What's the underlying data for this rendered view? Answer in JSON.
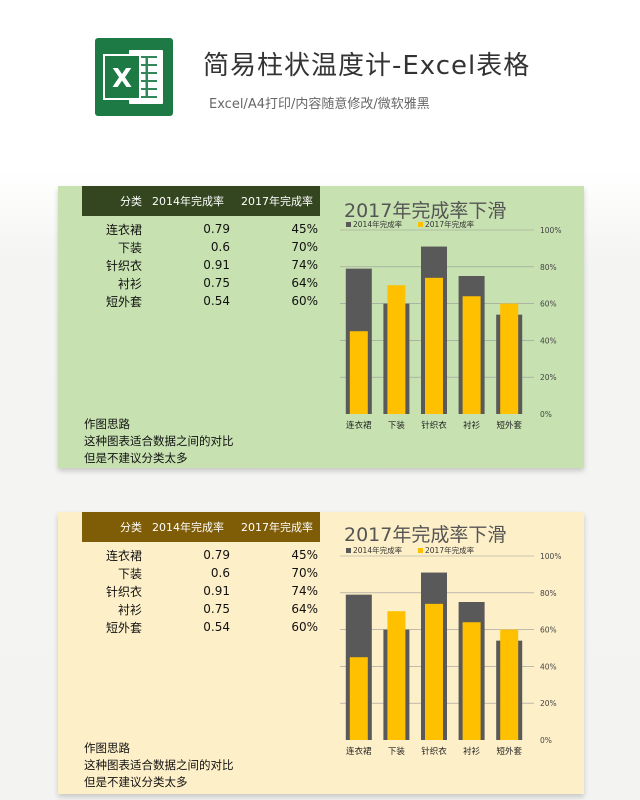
{
  "header": {
    "title": "简易柱状温度计-Excel表格",
    "subtitle": "Excel/A4打印/内容随意修改/微软雅黑",
    "logo_letter": "X"
  },
  "table": {
    "headers": [
      "分类",
      "2014年完成率",
      "2017年完成率"
    ],
    "rows": [
      {
        "category": "连衣裙",
        "v2014": "0.79",
        "v2017": "45%"
      },
      {
        "category": "下装",
        "v2014": "0.6",
        "v2017": "70%"
      },
      {
        "category": "针织衣",
        "v2014": "0.91",
        "v2017": "74%"
      },
      {
        "category": "衬衫",
        "v2014": "0.75",
        "v2017": "64%"
      },
      {
        "category": "短外套",
        "v2014": "0.54",
        "v2017": "60%"
      }
    ]
  },
  "notes": {
    "heading": "作图思路",
    "line1": "这种图表适合数据之间的对比",
    "line2": "但是不建议分类太多"
  },
  "colors": {
    "green_panel": "#c7e1b1",
    "green_header": "#33461f",
    "yellow_panel": "#fdefc8",
    "yellow_header": "#7f5c06",
    "series_2014": "#595959",
    "series_2017": "#ffc000"
  },
  "chart_data": [
    {
      "type": "bar",
      "title": "2017年完成率下滑",
      "categories": [
        "连衣裙",
        "下装",
        "针织衣",
        "衬衫",
        "短外套"
      ],
      "series": [
        {
          "name": "2014年完成率",
          "values": [
            0.79,
            0.6,
            0.91,
            0.75,
            0.54
          ]
        },
        {
          "name": "2017年完成率",
          "values": [
            0.45,
            0.7,
            0.74,
            0.64,
            0.6
          ]
        }
      ],
      "y_ticks": [
        "0%",
        "20%",
        "40%",
        "60%",
        "80%",
        "100%"
      ],
      "ylim": [
        0,
        1
      ],
      "grid": true,
      "legend": "top"
    },
    {
      "type": "bar",
      "title": "2017年完成率下滑",
      "categories": [
        "连衣裙",
        "下装",
        "针织衣",
        "衬衫",
        "短外套"
      ],
      "series": [
        {
          "name": "2014年完成率",
          "values": [
            0.79,
            0.6,
            0.91,
            0.75,
            0.54
          ]
        },
        {
          "name": "2017年完成率",
          "values": [
            0.45,
            0.7,
            0.74,
            0.64,
            0.6
          ]
        }
      ],
      "y_ticks": [
        "0%",
        "20%",
        "40%",
        "60%",
        "80%",
        "100%"
      ],
      "ylim": [
        0,
        1
      ],
      "grid": true,
      "legend": "top"
    }
  ]
}
